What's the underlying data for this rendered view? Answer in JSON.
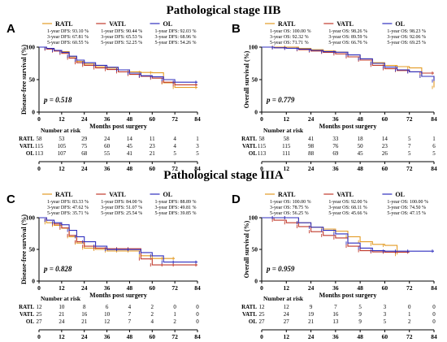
{
  "stage_titles": [
    "Pathological stage IIB",
    "Pathological stage IIIA"
  ],
  "colors": {
    "RATL": "#e39b24",
    "VATL": "#c0392b",
    "OL": "#2f2fbf"
  },
  "chart_data": [
    {
      "type": "line",
      "panel": "A",
      "stage": "Pathological stage IIB",
      "ylabel": "Disease-free survival (%)",
      "xlabel": "Months post surgery",
      "xlim": [
        0,
        84
      ],
      "ylim": [
        0,
        100
      ],
      "x_ticks": [
        0,
        12,
        24,
        36,
        48,
        60,
        72,
        84
      ],
      "y_ticks": [
        0,
        50,
        100
      ],
      "p_value": "p = 0.518",
      "legend": [
        {
          "name": "RATL",
          "stats": [
            "1-year DFS: 93.10 %",
            "3-year DFS: 67.81 %",
            "5-year DFS: 60.55 %"
          ]
        },
        {
          "name": "VATL",
          "stats": [
            "1-year DFS: 90.44 %",
            "3-year DFS: 65.53 %",
            "5-year DFS: 52.25 %"
          ]
        },
        {
          "name": "OL",
          "stats": [
            "1-year DFS: 92.03 %",
            "3-year DFS: 68.96 %",
            "5-year DFS: 54.26 %"
          ]
        }
      ],
      "series": [
        {
          "name": "RATL",
          "x": [
            0,
            4,
            8,
            12,
            16,
            20,
            24,
            30,
            36,
            42,
            48,
            54,
            60,
            66,
            72,
            84
          ],
          "y": [
            100,
            98,
            95,
            93.1,
            85,
            78,
            74,
            70,
            67.8,
            65,
            62,
            61,
            60.5,
            45,
            38,
            38
          ]
        },
        {
          "name": "VATL",
          "x": [
            0,
            4,
            8,
            12,
            16,
            20,
            24,
            30,
            36,
            42,
            48,
            54,
            60,
            66,
            72,
            84
          ],
          "y": [
            100,
            97,
            94,
            90.4,
            83,
            76,
            72,
            68,
            65.5,
            62,
            58,
            55,
            52.2,
            46,
            42,
            42
          ]
        },
        {
          "name": "OL",
          "x": [
            0,
            4,
            8,
            12,
            16,
            20,
            24,
            30,
            36,
            42,
            48,
            54,
            60,
            66,
            72,
            84
          ],
          "y": [
            100,
            98,
            95,
            92,
            86,
            80,
            76,
            72,
            69,
            65,
            60,
            56,
            54.3,
            50,
            46,
            46
          ]
        }
      ],
      "risk_table": {
        "title": "Number at risk",
        "rows": [
          {
            "name": "RATL",
            "values": [
              "58",
              "53",
              "29",
              "24",
              "14",
              "11",
              "4",
              "1"
            ]
          },
          {
            "name": "VATL",
            "values": [
              "115",
              "105",
              "75",
              "60",
              "45",
              "23",
              "4",
              "3"
            ]
          },
          {
            "name": "OL",
            "values": [
              "113",
              "107",
              "68",
              "55",
              "41",
              "21",
              "5",
              "5"
            ]
          }
        ]
      }
    },
    {
      "type": "line",
      "panel": "B",
      "stage": "Pathological stage IIB",
      "ylabel": "Overall survival (%)",
      "xlabel": "Months post surgery",
      "xlim": [
        0,
        84
      ],
      "ylim": [
        0,
        100
      ],
      "x_ticks": [
        0,
        12,
        24,
        36,
        48,
        60,
        72,
        84
      ],
      "y_ticks": [
        0,
        50,
        100
      ],
      "p_value": "p = 0.779",
      "legend": [
        {
          "name": "RATL",
          "stats": [
            "1-year OS: 100.00 %",
            "3-year OS: 92.32 %",
            "5-year OS: 71.71 %"
          ]
        },
        {
          "name": "VATL",
          "stats": [
            "1-year OS: 98.26 %",
            "3-year OS: 89.59 %",
            "5-year OS: 66.76 %"
          ]
        },
        {
          "name": "OL",
          "stats": [
            "1-year OS: 98.23 %",
            "3-year OS: 92.06 %",
            "5-year OS: 69.25 %"
          ]
        }
      ],
      "series": [
        {
          "name": "RATL",
          "x": [
            0,
            6,
            12,
            18,
            24,
            30,
            36,
            42,
            48,
            54,
            60,
            66,
            72,
            78,
            84
          ],
          "y": [
            100,
            100,
            100,
            98,
            96,
            94,
            92.3,
            88,
            82,
            76,
            71.7,
            70,
            68,
            55,
            38
          ]
        },
        {
          "name": "VATL",
          "x": [
            0,
            6,
            12,
            18,
            24,
            30,
            36,
            42,
            48,
            54,
            60,
            66,
            72,
            78,
            84
          ],
          "y": [
            100,
            99,
            98.3,
            96,
            94,
            92,
            89.6,
            85,
            80,
            72,
            66.8,
            64,
            62,
            60,
            60
          ]
        },
        {
          "name": "OL",
          "x": [
            0,
            6,
            12,
            18,
            24,
            30,
            36,
            42,
            48,
            54,
            60,
            66,
            72,
            78,
            84
          ],
          "y": [
            100,
            99,
            98.2,
            97,
            95,
            93,
            92.1,
            88,
            82,
            75,
            69.3,
            65,
            62,
            55,
            48
          ]
        }
      ],
      "risk_table": {
        "title": "Number at risk",
        "rows": [
          {
            "name": "RATL",
            "values": [
              "58",
              "58",
              "41",
              "33",
              "18",
              "14",
              "5",
              "1"
            ]
          },
          {
            "name": "VATL",
            "values": [
              "115",
              "115",
              "98",
              "76",
              "50",
              "23",
              "7",
              "6"
            ]
          },
          {
            "name": "OL",
            "values": [
              "113",
              "111",
              "88",
              "69",
              "45",
              "26",
              "5",
              "5"
            ]
          }
        ]
      }
    },
    {
      "type": "line",
      "panel": "C",
      "stage": "Pathological stage IIIA",
      "ylabel": "Disease-free survival (%)",
      "xlabel": "Months post surgery",
      "xlim": [
        0,
        84
      ],
      "ylim": [
        0,
        100
      ],
      "x_ticks": [
        0,
        12,
        24,
        36,
        48,
        60,
        72,
        84
      ],
      "y_ticks": [
        0,
        50,
        100
      ],
      "p_value": "p = 0.828",
      "legend": [
        {
          "name": "RATL",
          "stats": [
            "1-year DFS: 83.33 %",
            "3-year DFS: 47.62 %",
            "5-year DFS: 35.71 %"
          ]
        },
        {
          "name": "VATL",
          "stats": [
            "1-year DFS: 84.00 %",
            "3-year DFS: 51.07 %",
            "5-year DFS: 25.54 %"
          ]
        },
        {
          "name": "OL",
          "stats": [
            "1-year DFS: 88.89 %",
            "3-year DFS: 49.81 %",
            "5-year DFS: 39.85 %"
          ]
        }
      ],
      "series": [
        {
          "name": "RATL",
          "x": [
            0,
            4,
            8,
            12,
            16,
            20,
            24,
            30,
            36,
            42,
            48,
            54,
            60,
            66,
            72
          ],
          "y": [
            100,
            92,
            88,
            83.3,
            70,
            60,
            52,
            50,
            47.6,
            47.6,
            47.6,
            40,
            35.7,
            35.7,
            35.7
          ]
        },
        {
          "name": "VATL",
          "x": [
            0,
            4,
            8,
            12,
            16,
            20,
            24,
            30,
            36,
            42,
            48,
            54,
            60,
            66,
            72,
            84
          ],
          "y": [
            100,
            96,
            90,
            84,
            72,
            62,
            55,
            52,
            51,
            51,
            51,
            35,
            25.5,
            25.5,
            25.5,
            25.5
          ]
        },
        {
          "name": "OL",
          "x": [
            0,
            4,
            8,
            12,
            16,
            20,
            24,
            30,
            36,
            42,
            48,
            54,
            60,
            66,
            72,
            84
          ],
          "y": [
            100,
            96,
            92,
            88.9,
            80,
            70,
            62,
            55,
            49.8,
            49.8,
            49.8,
            45,
            39.9,
            30,
            30,
            30
          ]
        }
      ],
      "risk_table": {
        "title": "Number at risk",
        "rows": [
          {
            "name": "RATL",
            "values": [
              "12",
              "10",
              "8",
              "6",
              "4",
              "2",
              "0",
              "0"
            ]
          },
          {
            "name": "VATL",
            "values": [
              "25",
              "21",
              "16",
              "10",
              "7",
              "2",
              "1",
              "0"
            ]
          },
          {
            "name": "OL",
            "values": [
              "27",
              "24",
              "21",
              "12",
              "7",
              "4",
              "2",
              "0"
            ]
          }
        ]
      }
    },
    {
      "type": "line",
      "panel": "D",
      "stage": "Pathological stage IIIA",
      "ylabel": "Overall survival (%)",
      "xlabel": "Months post surgery",
      "xlim": [
        0,
        84
      ],
      "ylim": [
        0,
        100
      ],
      "x_ticks": [
        0,
        12,
        24,
        36,
        48,
        60,
        72,
        84
      ],
      "y_ticks": [
        0,
        50,
        100
      ],
      "p_value": "p = 0.959",
      "legend": [
        {
          "name": "RATL",
          "stats": [
            "1-year OS: 100.00 %",
            "3-year OS: 78.75 %",
            "5-year OS: 56.25 %"
          ]
        },
        {
          "name": "VATL",
          "stats": [
            "1-year OS: 92.00 %",
            "3-year OS: 68.11 %",
            "5-year OS: 45.66 %"
          ]
        },
        {
          "name": "OL",
          "stats": [
            "1-year OS: 100.00 %",
            "3-year OS: 74.50 %",
            "5-year OS: 47.15 %"
          ]
        }
      ],
      "series": [
        {
          "name": "RATL",
          "x": [
            0,
            6,
            12,
            18,
            24,
            30,
            36,
            42,
            48,
            54,
            60,
            66
          ],
          "y": [
            100,
            100,
            100,
            92,
            85,
            82,
            78.8,
            70,
            62,
            58,
            56.3,
            42
          ]
        },
        {
          "name": "VATL",
          "x": [
            0,
            6,
            12,
            18,
            24,
            30,
            36,
            42,
            48,
            54,
            60,
            66,
            72
          ],
          "y": [
            100,
            96,
            92,
            86,
            78,
            72,
            68.1,
            55,
            48,
            46,
            45.7,
            45.7,
            45.7
          ]
        },
        {
          "name": "OL",
          "x": [
            0,
            6,
            12,
            18,
            24,
            30,
            36,
            42,
            48,
            54,
            60,
            66,
            72,
            84
          ],
          "y": [
            100,
            100,
            100,
            92,
            85,
            80,
            74.5,
            60,
            52,
            48,
            47.2,
            47.2,
            47.2,
            47.2
          ]
        }
      ],
      "risk_table": {
        "title": "Number at risk",
        "rows": [
          {
            "name": "RATL",
            "values": [
              "12",
              "12",
              "9",
              "7",
              "5",
              "3",
              "0",
              "0"
            ]
          },
          {
            "name": "VATL",
            "values": [
              "25",
              "24",
              "19",
              "16",
              "9",
              "3",
              "1",
              "0"
            ]
          },
          {
            "name": "OL",
            "values": [
              "27",
              "27",
              "21",
              "13",
              "9",
              "5",
              "2",
              "0"
            ]
          }
        ]
      }
    }
  ]
}
